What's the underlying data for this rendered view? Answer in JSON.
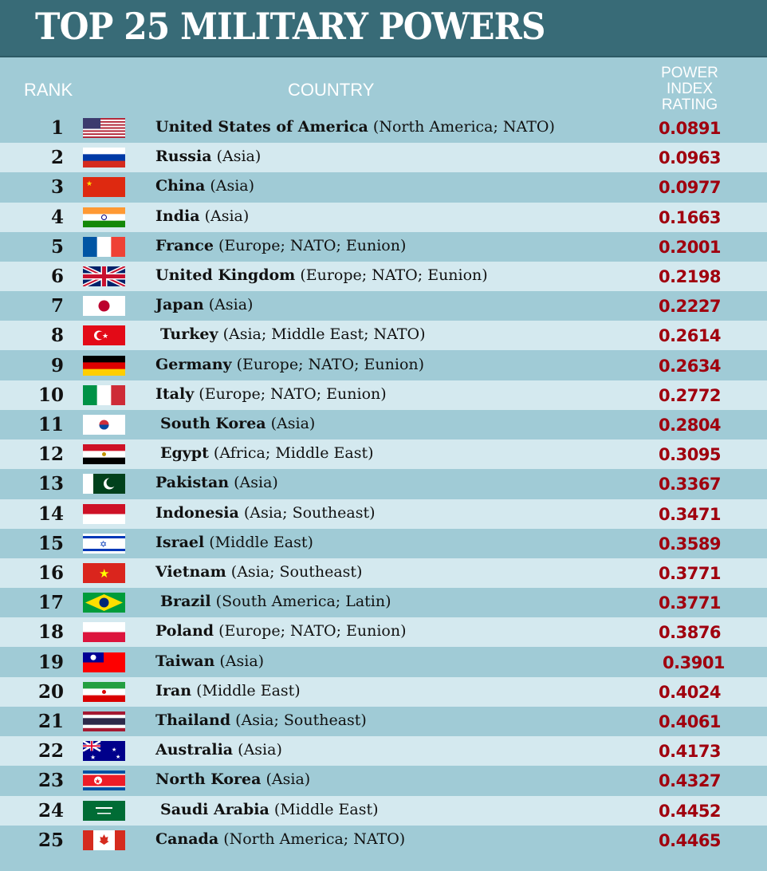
{
  "chart_data": {
    "type": "table",
    "title": "TOP 25 MILITARY POWERS",
    "columns": [
      "RANK",
      "COUNTRY",
      "POWER INDEX RATING"
    ],
    "rows": [
      {
        "rank": "1",
        "flag": "us-flag-icon",
        "country": "United States of America",
        "region": "(North America; NATO)",
        "value": "0.0891"
      },
      {
        "rank": "2",
        "flag": "russia-flag-icon",
        "country": "Russia",
        "region": "(Asia)",
        "value": "0.0963"
      },
      {
        "rank": "3",
        "flag": "china-flag-icon",
        "country": "China",
        "region": "(Asia)",
        "value": "0.0977"
      },
      {
        "rank": "4",
        "flag": "india-flag-icon",
        "country": "India",
        "region": "(Asia)",
        "value": "0.1663"
      },
      {
        "rank": "5",
        "flag": "france-flag-icon",
        "country": "France",
        "region": "(Europe; NATO; Eunion)",
        "value": "0.2001"
      },
      {
        "rank": "6",
        "flag": "uk-flag-icon",
        "country": "United Kingdom",
        "region": "(Europe; NATO; Eunion)",
        "value": "0.2198"
      },
      {
        "rank": "7",
        "flag": "japan-flag-icon",
        "country": "Japan",
        "region": "(Asia)",
        "value": "0.2227"
      },
      {
        "rank": "8",
        "flag": "turkey-flag-icon",
        "country": "Turkey",
        "region": "(Asia; Middle East; NATO)",
        "value": "0.2614"
      },
      {
        "rank": "9",
        "flag": "germany-flag-icon",
        "country": "Germany",
        "region": "(Europe; NATO; Eunion)",
        "value": "0.2634"
      },
      {
        "rank": "10",
        "flag": "italy-flag-icon",
        "country": "Italy",
        "region": "(Europe; NATO; Eunion)",
        "value": "0.2772"
      },
      {
        "rank": "11",
        "flag": "south-korea-flag-icon",
        "country": "South Korea",
        "region": "(Asia)",
        "value": "0.2804"
      },
      {
        "rank": "12",
        "flag": "egypt-flag-icon",
        "country": "Egypt",
        "region": "(Africa; Middle East)",
        "value": "0.3095"
      },
      {
        "rank": "13",
        "flag": "pakistan-flag-icon",
        "country": "Pakistan",
        "region": "(Asia)",
        "value": "0.3367"
      },
      {
        "rank": "14",
        "flag": "indonesia-flag-icon",
        "country": "Indonesia",
        "region": "(Asia; Southeast)",
        "value": "0.3471"
      },
      {
        "rank": "15",
        "flag": "israel-flag-icon",
        "country": "Israel",
        "region": "(Middle East)",
        "value": "0.3589"
      },
      {
        "rank": "16",
        "flag": "vietnam-flag-icon",
        "country": "Vietnam",
        "region": "(Asia; Southeast)",
        "value": "0.3771"
      },
      {
        "rank": "17",
        "flag": "brazil-flag-icon",
        "country": "Brazil",
        "region": "(South America; Latin)",
        "value": "0.3771"
      },
      {
        "rank": "18",
        "flag": "poland-flag-icon",
        "country": "Poland",
        "region": "(Europe; NATO; Eunion)",
        "value": "0.3876"
      },
      {
        "rank": "19",
        "flag": "taiwan-flag-icon",
        "country": "Taiwan",
        "region": "(Asia)",
        "value": "0.3901"
      },
      {
        "rank": "20",
        "flag": "iran-flag-icon",
        "country": "Iran",
        "region": "(Middle East)",
        "value": "0.4024"
      },
      {
        "rank": "21",
        "flag": "thailand-flag-icon",
        "country": "Thailand",
        "region": "(Asia; Southeast)",
        "value": "0.4061"
      },
      {
        "rank": "22",
        "flag": "australia-flag-icon",
        "country": "Australia",
        "region": "(Asia)",
        "value": "0.4173"
      },
      {
        "rank": "23",
        "flag": "north-korea-flag-icon",
        "country": "North Korea",
        "region": "(Asia)",
        "value": "0.4327"
      },
      {
        "rank": "24",
        "flag": "saudi-arabia-flag-icon",
        "country": "Saudi Arabia",
        "region": "(Middle East)",
        "value": "0.4452"
      },
      {
        "rank": "25",
        "flag": "canada-flag-icon",
        "country": "Canada",
        "region": "(North America; NATO)",
        "value": "0.4465"
      }
    ]
  },
  "headers": {
    "rank": "RANK",
    "country": "COUNTRY",
    "rating_1": "POWER",
    "rating_2": "INDEX",
    "rating_3": "RATING"
  },
  "colors": {
    "header_bg": "#386b77",
    "row_dark": "#a0cbd6",
    "row_light": "#d4e9ef",
    "value": "#a0000e"
  }
}
